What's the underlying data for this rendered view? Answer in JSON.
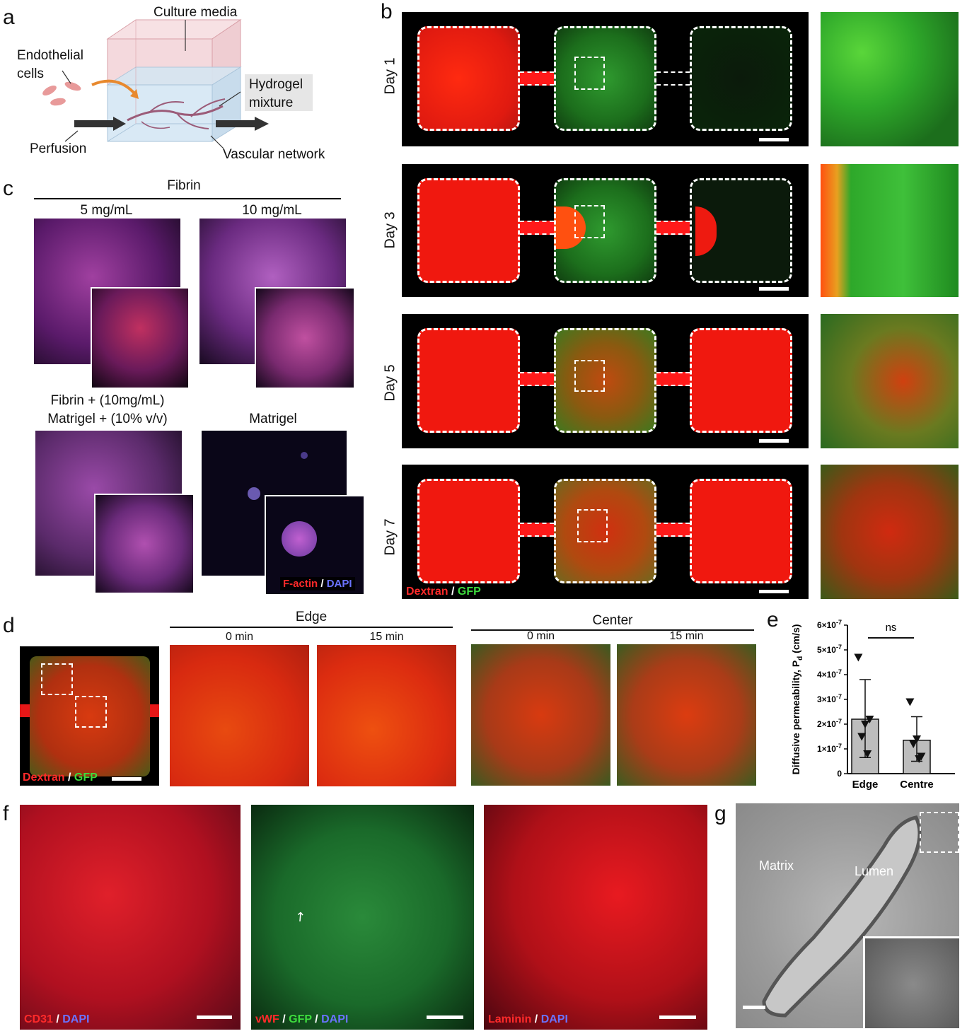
{
  "panel_labels": {
    "a": "a",
    "b": "b",
    "c": "c",
    "d": "d",
    "e": "e",
    "f": "f",
    "g": "g"
  },
  "panel_a": {
    "culture_media": "Culture media",
    "endothelial_cells": "Endothelial\ncells",
    "hydrogel_mixture": "Hydrogel\nmixture",
    "perfusion": "Perfusion",
    "vascular_network": "Vascular network"
  },
  "panel_b": {
    "days": [
      "Day 1",
      "Day 3",
      "Day 5",
      "Day 7"
    ],
    "legend_dextran": "Dextran",
    "legend_sep": " / ",
    "legend_gfp": "GFP"
  },
  "panel_c": {
    "fibrin": "Fibrin",
    "conc_5": "5 mg/mL",
    "conc_10": "10 mg/mL",
    "fibrin_matrigel_line1": "Fibrin + (10mg/mL)",
    "fibrin_matrigel_line2": "Matrigel + (10% v/v)",
    "matrigel": "Matrigel",
    "legend_factin": "F-actin",
    "legend_sep": " / ",
    "legend_dapi": "DAPI"
  },
  "panel_d": {
    "edge": "Edge",
    "center": "Center",
    "t0": "0 min",
    "t15": "15 min",
    "legend_dextran": "Dextran",
    "legend_sep": " / ",
    "legend_gfp": "GFP"
  },
  "panel_f": {
    "cd31": "CD31",
    "dapi": "DAPI",
    "vwf": "vWF",
    "gfp": "GFP",
    "laminin": "Laminin",
    "sep": " / "
  },
  "panel_g": {
    "matrix": "Matrix",
    "lumen": "Lumen"
  },
  "chart_data": {
    "type": "bar",
    "categories": [
      "Edge",
      "Centre"
    ],
    "series": [
      {
        "values": [
          2.2e-07,
          1.35e-07
        ]
      }
    ],
    "error_upper": [
      3.8e-07,
      2.3e-07
    ],
    "error_lower": [
      6.5e-08,
      5e-08
    ],
    "points": [
      [
        4.7e-07,
        2e-07,
        1.5e-07,
        8e-08,
        2.2e-07
      ],
      [
        2.9e-07,
        1.4e-07,
        1.2e-07,
        6e-08,
        7e-08
      ]
    ],
    "ylabel": "Diffusive permeability, P",
    "ylabel_sub": "d",
    "ylabel_unit": " (cm/s)",
    "yticks": [
      "0",
      "1×10",
      "2×10",
      "3×10",
      "4×10",
      "5×10",
      "6×10"
    ],
    "ytick_exp": "-7",
    "ylim": [
      0,
      6e-07
    ],
    "significance": "ns",
    "bar_color": "#bdbdbd"
  }
}
